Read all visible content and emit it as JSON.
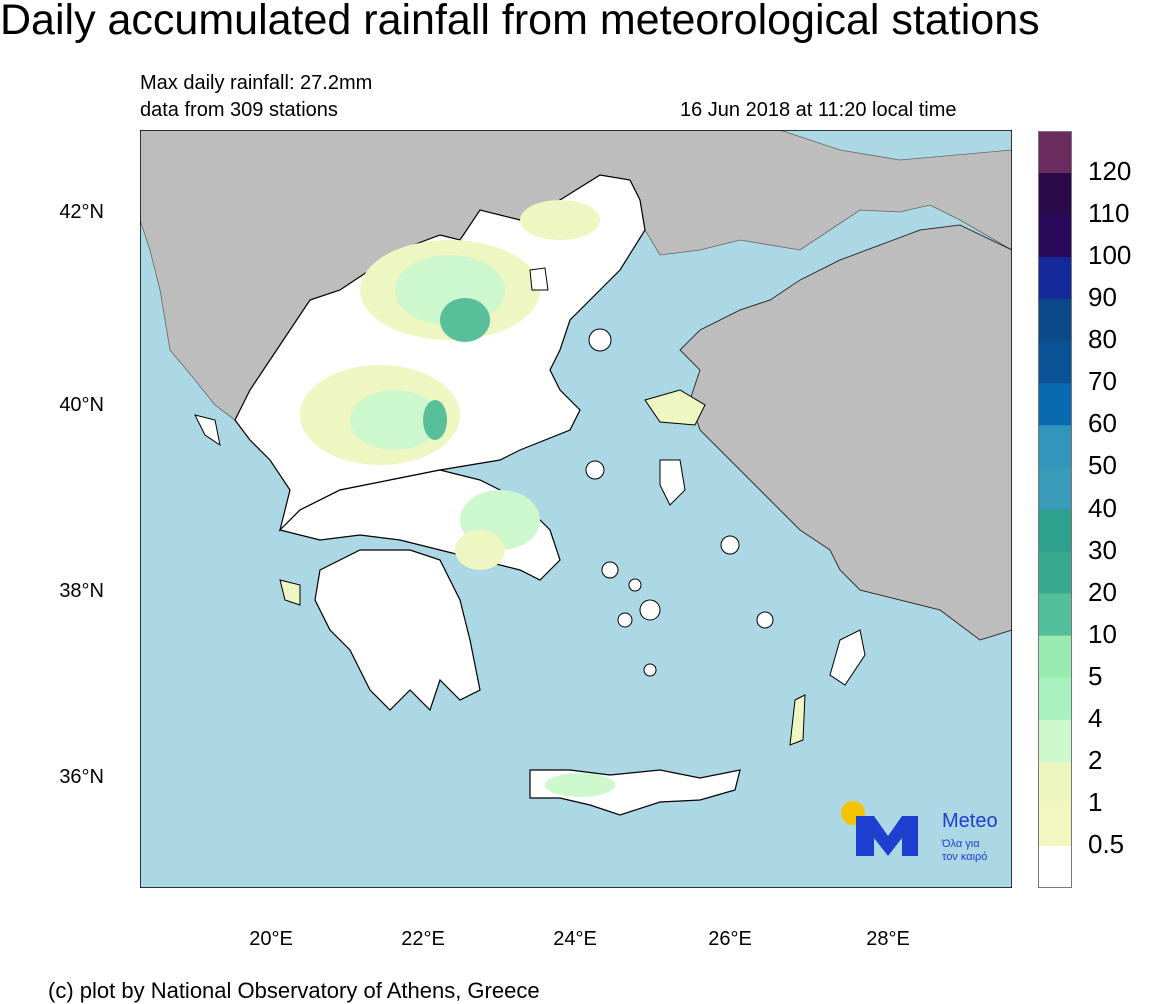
{
  "title": "Daily accumulated rainfall from meteorological stations",
  "max_rainfall": "Max daily rainfall: 27.2mm",
  "stations": "data from 309 stations",
  "timestamp": "16 Jun 2018 at 11:20 local time",
  "credit": "(c) plot by National Observatory of Athens, Greece",
  "lat_ticks": [
    "42°N",
    "40°N",
    "38°N",
    "36°N"
  ],
  "lon_ticks": [
    "20°E",
    "22°E",
    "24°E",
    "26°E",
    "28°E"
  ],
  "legend": {
    "labels": [
      "120",
      "110",
      "100",
      "90",
      "80",
      "70",
      "60",
      "50",
      "40",
      "30",
      "20",
      "10",
      "5",
      "4",
      "2",
      "1",
      "0.5"
    ],
    "colors": [
      "#6b2b5f",
      "#2a0a4a",
      "#2a0a5a",
      "#142a9a",
      "#0a4a8a",
      "#0a5296",
      "#0a6ab0",
      "#3296bc",
      "#3a9cba",
      "#2ea08e",
      "#38a98e",
      "#52bf9a",
      "#98eab0",
      "#a9f0bf",
      "#cdf8cc",
      "#eef6c0",
      "#f0f8c0",
      "#ffffff"
    ]
  },
  "colors": {
    "sea": "#acd7e5",
    "land_other": "#bdbdbd",
    "greece_dry": "#ffffff",
    "rain_light": "#eef6c2",
    "rain_2": "#cdf7cc",
    "rain_4": "#9eeab4",
    "rain_10": "#58bf9a"
  },
  "logo": {
    "brand": "Meteo",
    "tagline_1": "Όλα για",
    "tagline_2": "τον καιρό",
    "sun_color": "#f5c400",
    "mark_color": "#1f3fd1"
  }
}
